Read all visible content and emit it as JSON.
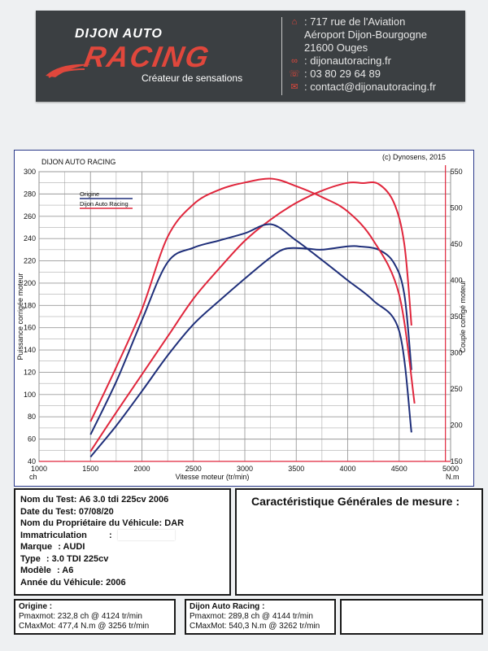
{
  "header": {
    "logo_line1": "DIJON AUTO",
    "logo_line2": "RACING",
    "tagline": "Créateur de sensations",
    "contact": [
      {
        "icon": "home-icon",
        "glyph": "⌂",
        "text": ": 717 rue de l'Aviation"
      },
      {
        "icon": "none",
        "glyph": "",
        "text": "Aéroport Dijon-Bourgogne"
      },
      {
        "icon": "none",
        "glyph": "",
        "text": "21600 Ouges"
      },
      {
        "icon": "link-icon",
        "glyph": "🔗",
        "text": ": dijonautoracing.fr"
      },
      {
        "icon": "phone-icon",
        "glyph": "☏",
        "text": ": 03 80 29 64 89"
      },
      {
        "icon": "mail-icon",
        "glyph": "✉",
        "text": ": contact@dijonautoracing.fr"
      }
    ],
    "accent_color": "#e0473c",
    "bg_color": "#3b3f42"
  },
  "chart_data": {
    "type": "line",
    "title": "DIJON AUTO RACING",
    "copyright": "(c) Dynosens, 2015",
    "xlabel": "Vitesse moteur (tr/min)",
    "ylabel_left": "Puissance corrigée moteur",
    "ylabel_right": "Couple corrigé moteur",
    "xunit": "ch",
    "yunit_right": "N.m",
    "xlim": [
      1000,
      5000
    ],
    "ylim_left": [
      40,
      300
    ],
    "ylim_right": [
      150,
      550
    ],
    "x_ticks": [
      "1000",
      "1500",
      "2000",
      "2500",
      "3000",
      "3500",
      "4000",
      "4500",
      "5000"
    ],
    "y_left_ticks": [
      "40",
      "60",
      "80",
      "100",
      "120",
      "140",
      "160",
      "180",
      "200",
      "220",
      "240",
      "260",
      "280",
      "300"
    ],
    "y_right_ticks": [
      "150",
      "200",
      "250",
      "300",
      "350",
      "400",
      "450",
      "500",
      "550"
    ],
    "grid": true,
    "legend_position": "top-left",
    "series": [
      {
        "name": "Origine",
        "color": "#1f2f7a",
        "axis": "left",
        "kind": "power",
        "x": [
          1500,
          1750,
          2000,
          2250,
          2500,
          2750,
          3000,
          3250,
          3400,
          3600,
          3750,
          4000,
          4124,
          4300,
          4450,
          4550,
          4620
        ],
        "y": [
          44,
          72,
          103,
          135,
          163,
          184,
          204,
          223,
          231,
          231,
          230,
          233,
          232.8,
          230,
          218,
          190,
          122
        ]
      },
      {
        "name": "Dijon Auto Racing",
        "color": "#e0263c",
        "axis": "left",
        "kind": "power",
        "x": [
          1500,
          1750,
          2000,
          2250,
          2500,
          2750,
          3000,
          3250,
          3500,
          3750,
          4000,
          4144,
          4300,
          4450,
          4550,
          4620
        ],
        "y": [
          49,
          84,
          118,
          152,
          186,
          213,
          238,
          257,
          272,
          283,
          290,
          289.8,
          289,
          272,
          235,
          162
        ]
      },
      {
        "name": "Origine",
        "color": "#1f2f7a",
        "axis": "right",
        "kind": "torque",
        "x": [
          1500,
          1750,
          2000,
          2250,
          2500,
          2750,
          3000,
          3256,
          3500,
          3750,
          4000,
          4250,
          4500,
          4620
        ],
        "y": [
          187,
          260,
          345,
          425,
          445,
          455,
          465,
          477.4,
          455,
          428,
          400,
          372,
          330,
          190
        ]
      },
      {
        "name": "Dijon Auto Racing",
        "color": "#e0263c",
        "axis": "right",
        "kind": "torque",
        "x": [
          1500,
          1750,
          2000,
          2250,
          2500,
          2750,
          3000,
          3262,
          3500,
          3750,
          4000,
          4250,
          4500,
          4650
        ],
        "y": [
          205,
          280,
          360,
          460,
          505,
          525,
          535,
          540.3,
          530,
          515,
          495,
          455,
          380,
          230
        ]
      }
    ]
  },
  "info": {
    "lines": [
      {
        "label": "Nom du Test:",
        "value": "A6 3.0 tdi 225cv 2006"
      },
      {
        "label": "Date du Test:",
        "value": "07/08/20"
      },
      {
        "label": "Nom du Propriétaire du Véhicule:",
        "value": "DAR"
      },
      {
        "label": "Immatriculation",
        "value": ":"
      },
      {
        "label": "Marque",
        "value": ":  AUDI"
      },
      {
        "label": "Type",
        "value": ":  3.0 TDI 225cv"
      },
      {
        "label": "Modèle",
        "value": ":  A6"
      },
      {
        "label": "Année du Véhicule:",
        "value": "2006"
      }
    ]
  },
  "carac": {
    "title": "Caractéristique Générales de mesure :"
  },
  "origine": {
    "title": "Origine :",
    "pmax": "Pmaxmot: 232,8 ch @ 4124 tr/min",
    "cmax": "CMaxMot: 477,4 N.m @ 3256 tr/min"
  },
  "dar": {
    "title": "Dijon Auto Racing :",
    "pmax": "Pmaxmot: 289,8 ch @ 4144 tr/min",
    "cmax": "CMaxMot: 540,3 N.m @ 3262 tr/min"
  }
}
